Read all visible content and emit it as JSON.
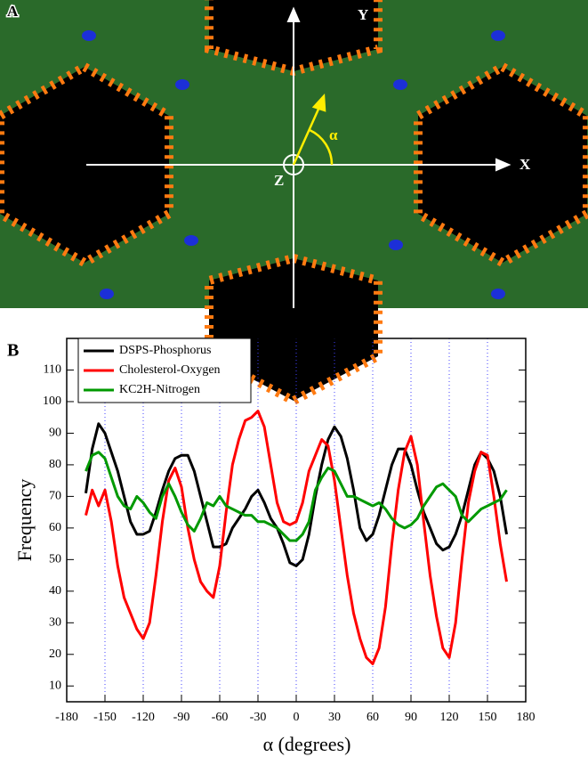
{
  "image_panel": {
    "label": "A",
    "x_axis": "X",
    "y_axis": "Y",
    "z_axis": "Z",
    "angle": "α"
  },
  "chart_data": {
    "type": "line",
    "panel_label": "B",
    "xlabel": "α (degrees)",
    "ylabel": "Frequency",
    "xlim": [
      -180,
      180
    ],
    "xticks": [
      -180,
      -150,
      -120,
      -90,
      -60,
      -30,
      0,
      30,
      60,
      90,
      120,
      150,
      180
    ],
    "ylim": [
      5,
      120
    ],
    "yticks": [
      10,
      20,
      30,
      40,
      50,
      60,
      70,
      80,
      90,
      100,
      110
    ],
    "grid_x": true,
    "legend": "upper-left",
    "x": [
      -165,
      -160,
      -155,
      -150,
      -145,
      -140,
      -135,
      -130,
      -125,
      -120,
      -115,
      -110,
      -105,
      -100,
      -95,
      -90,
      -85,
      -80,
      -75,
      -70,
      -65,
      -60,
      -55,
      -50,
      -45,
      -40,
      -35,
      -30,
      -25,
      -20,
      -15,
      -10,
      -5,
      0,
      5,
      10,
      15,
      20,
      25,
      30,
      35,
      40,
      45,
      50,
      55,
      60,
      65,
      70,
      75,
      80,
      85,
      90,
      95,
      100,
      105,
      110,
      115,
      120,
      125,
      130,
      135,
      140,
      145,
      150,
      155,
      160,
      165
    ],
    "series": [
      {
        "name": "DSPS-Phosphorus",
        "color": "#000000",
        "values": [
          71,
          85,
          93,
          90,
          84,
          78,
          70,
          62,
          58,
          58,
          59,
          65,
          72,
          78,
          82,
          83,
          83,
          78,
          70,
          62,
          54,
          54,
          55,
          60,
          63,
          66,
          70,
          72,
          68,
          63,
          60,
          55,
          49,
          48,
          50,
          58,
          70,
          80,
          88,
          92,
          89,
          82,
          72,
          60,
          56,
          58,
          64,
          72,
          80,
          85,
          85,
          80,
          72,
          65,
          60,
          55,
          53,
          54,
          58,
          64,
          72,
          80,
          84,
          82,
          78,
          70,
          58
        ]
      },
      {
        "name": "Cholesterol-Oxygen",
        "color": "#ff0000",
        "values": [
          64,
          72,
          67,
          72,
          62,
          48,
          38,
          33,
          28,
          25,
          30,
          45,
          62,
          75,
          79,
          73,
          60,
          50,
          43,
          40,
          38,
          48,
          65,
          80,
          88,
          94,
          95,
          97,
          92,
          80,
          68,
          62,
          61,
          62,
          68,
          78,
          83,
          88,
          86,
          75,
          60,
          45,
          33,
          25,
          19,
          17,
          22,
          35,
          55,
          72,
          84,
          89,
          80,
          62,
          45,
          32,
          22,
          19,
          30,
          50,
          68,
          78,
          84,
          83,
          70,
          55,
          43
        ]
      },
      {
        "name": "KC2H-Nitrogen",
        "color": "#009900",
        "values": [
          78,
          83,
          84,
          82,
          76,
          70,
          67,
          66,
          70,
          68,
          65,
          63,
          70,
          74,
          70,
          65,
          61,
          59,
          63,
          68,
          67,
          70,
          67,
          66,
          65,
          64,
          64,
          62,
          62,
          61,
          60,
          58,
          56,
          56,
          58,
          62,
          72,
          76,
          79,
          78,
          74,
          70,
          70,
          69,
          68,
          67,
          68,
          66,
          63,
          61,
          60,
          61,
          63,
          67,
          70,
          73,
          74,
          72,
          70,
          64,
          62,
          64,
          66,
          67,
          68,
          69,
          72
        ]
      }
    ]
  }
}
